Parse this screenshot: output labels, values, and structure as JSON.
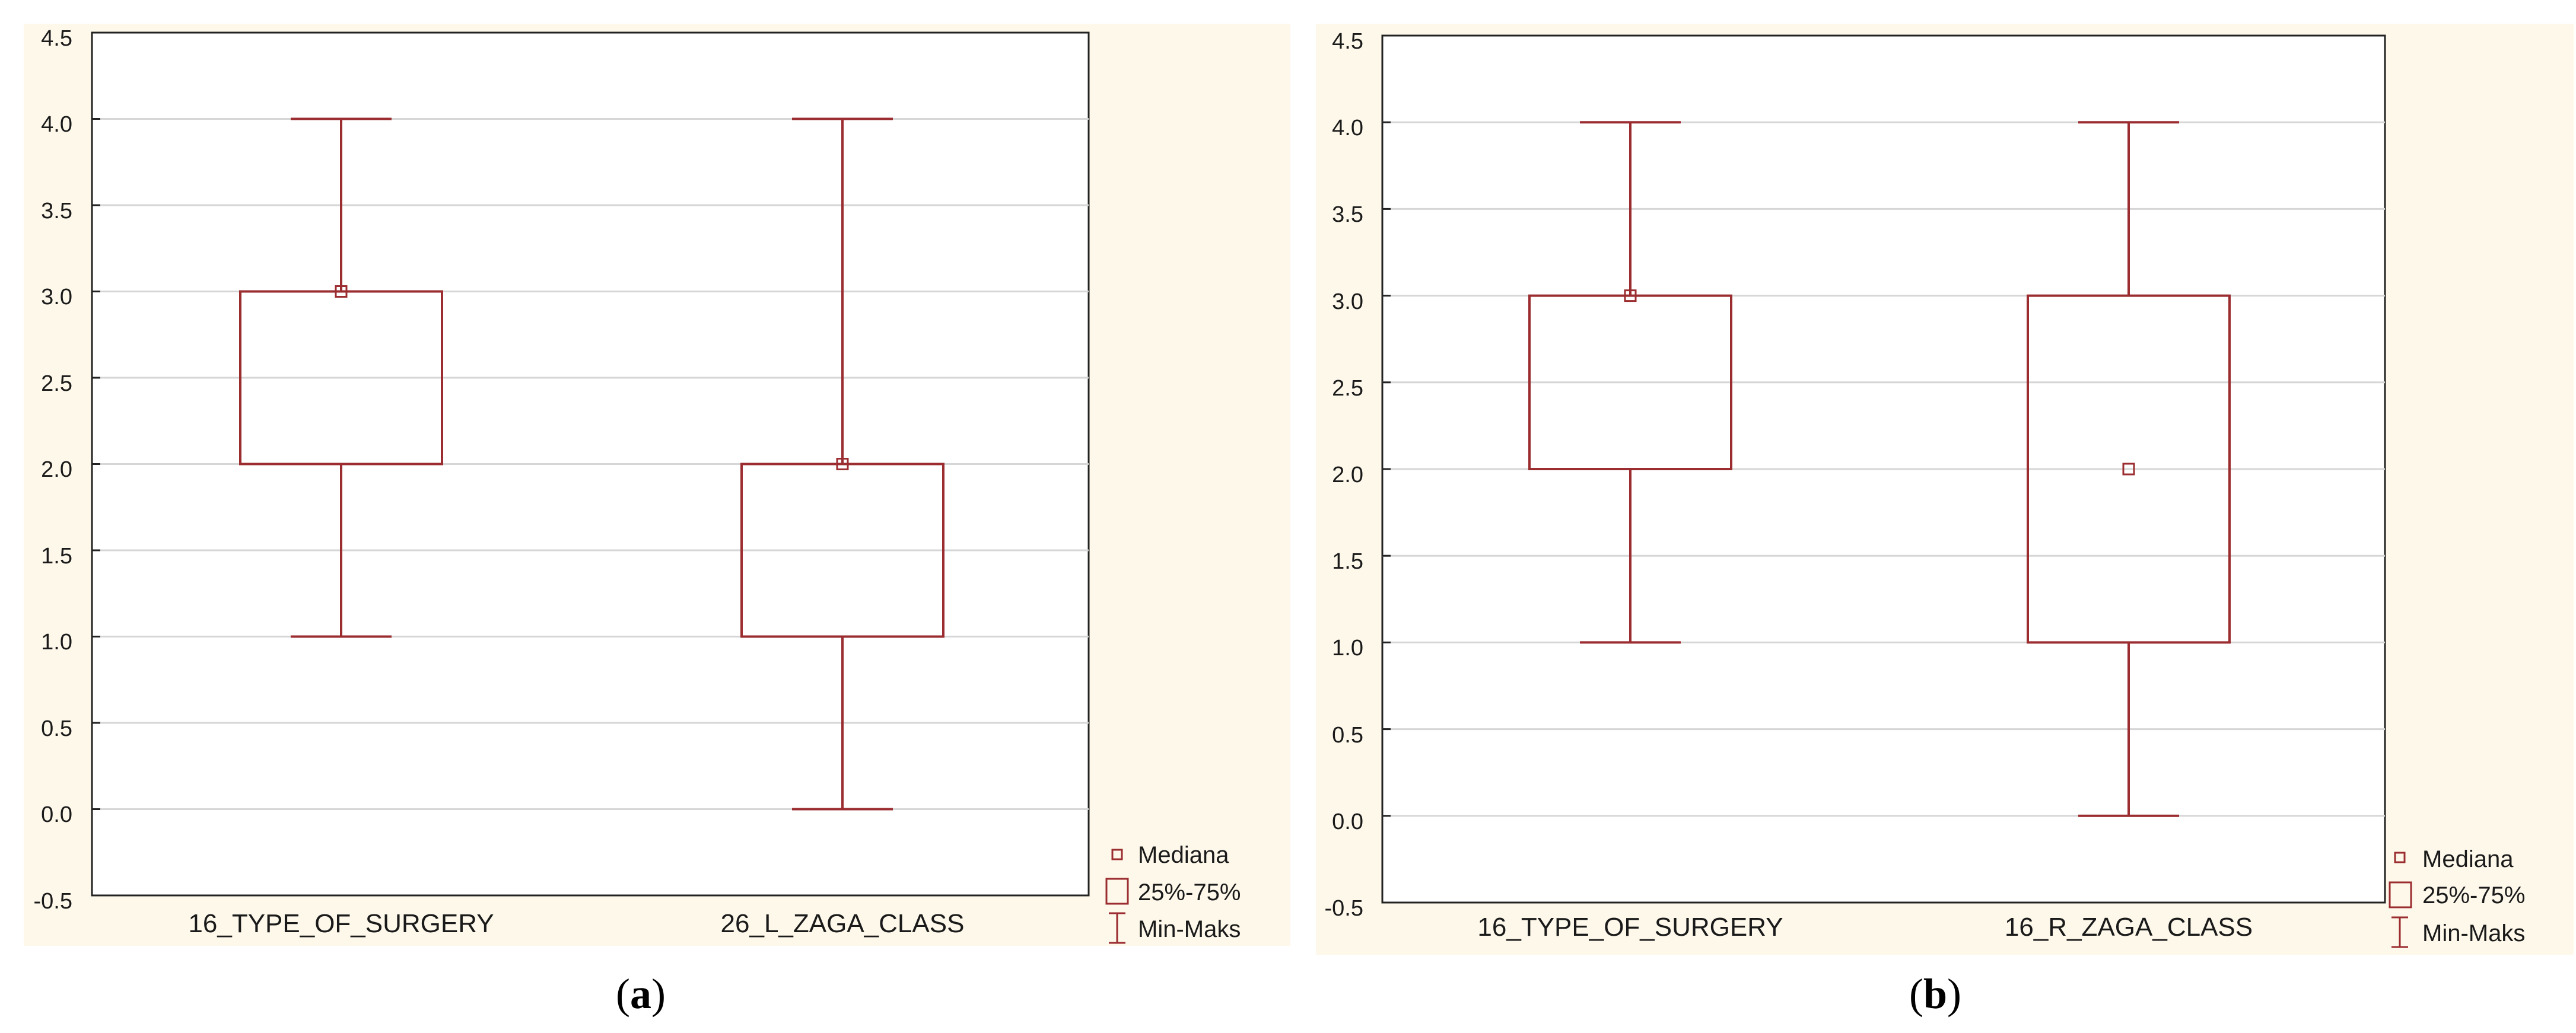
{
  "colors": {
    "panel_bg": "#fdf8ea",
    "plot_bg": "#ffffff",
    "box_stroke": "#9b2d30",
    "grid": "#d6d6d6",
    "axis": "#222222"
  },
  "chart_data": [
    {
      "type": "box",
      "panel_label": "a",
      "categories": [
        "16_TYPE_OF_SURGERY",
        "26_L_ZAGA_CLASS"
      ],
      "series": [
        {
          "name": "16_TYPE_OF_SURGERY",
          "min": 1.0,
          "q1": 2.0,
          "median": 3.0,
          "q3": 3.0,
          "max": 4.0
        },
        {
          "name": "26_L_ZAGA_CLASS",
          "min": 0.0,
          "q1": 1.0,
          "median": 2.0,
          "q3": 2.0,
          "max": 4.0
        }
      ],
      "y_ticks": [
        "4.5",
        "4.0",
        "3.5",
        "3.0",
        "2.5",
        "2.0",
        "1.5",
        "1.0",
        "0.5",
        "0.0",
        "-0.5"
      ],
      "ylim": [
        -0.5,
        4.5
      ],
      "grid": true,
      "legend": {
        "position": "bottom-right",
        "entries": [
          "Mediana",
          "25%-75%",
          "Min-Maks"
        ]
      }
    },
    {
      "type": "box",
      "panel_label": "b",
      "categories": [
        "16_TYPE_OF_SURGERY",
        "16_R_ZAGA_CLASS"
      ],
      "series": [
        {
          "name": "16_TYPE_OF_SURGERY",
          "min": 1.0,
          "q1": 2.0,
          "median": 3.0,
          "q3": 3.0,
          "max": 4.0
        },
        {
          "name": "16_R_ZAGA_CLASS",
          "min": 0.0,
          "q1": 1.0,
          "median": 2.0,
          "q3": 3.0,
          "max": 4.0
        }
      ],
      "y_ticks": [
        "4.5",
        "4.0",
        "3.5",
        "3.0",
        "2.5",
        "2.0",
        "1.5",
        "1.0",
        "0.5",
        "0.0",
        "-0.5"
      ],
      "ylim": [
        -0.5,
        4.5
      ],
      "grid": true,
      "legend": {
        "position": "bottom-right",
        "entries": [
          "Mediana",
          "25%-75%",
          "Min-Maks"
        ]
      }
    }
  ]
}
